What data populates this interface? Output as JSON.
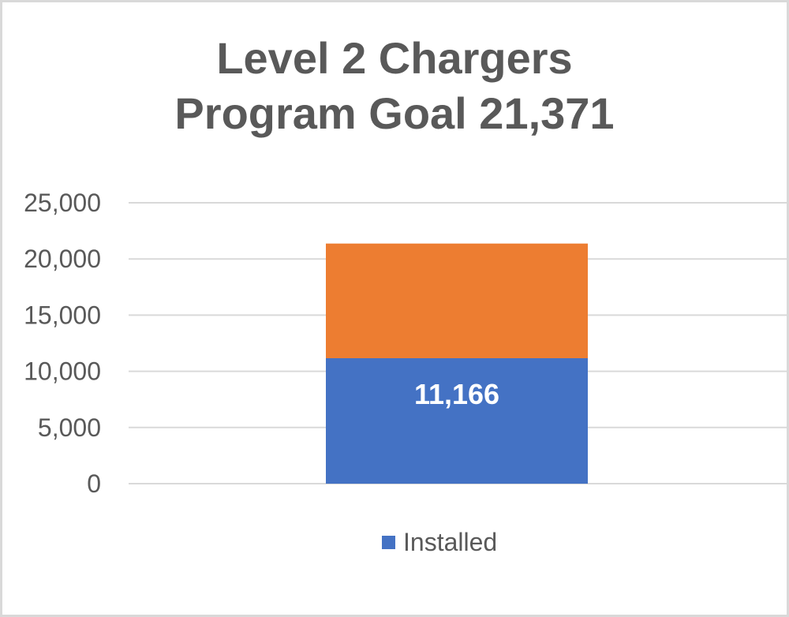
{
  "chart_data": {
    "type": "bar",
    "stacked": true,
    "title_lines": [
      "Level 2 Chargers",
      "Program Goal 21,371"
    ],
    "categories": [
      ""
    ],
    "series": [
      {
        "name": "Installed",
        "values": [
          11166
        ],
        "color": "#4472c4",
        "data_labels": [
          "11,166"
        ],
        "in_legend": true
      },
      {
        "values": [
          10205
        ],
        "color": "#ed7d31",
        "in_legend": false
      }
    ],
    "ylim": [
      0,
      25000
    ],
    "yticks": [
      0,
      5000,
      10000,
      15000,
      20000,
      25000
    ],
    "ytick_labels": [
      "0",
      "5,000",
      "10,000",
      "15,000",
      "20,000",
      "25,000"
    ],
    "grid": true,
    "legend_position": "bottom",
    "colors": {
      "gridline": "#d9d9d9",
      "text": "#595959",
      "border": "#d9d9d9"
    }
  }
}
